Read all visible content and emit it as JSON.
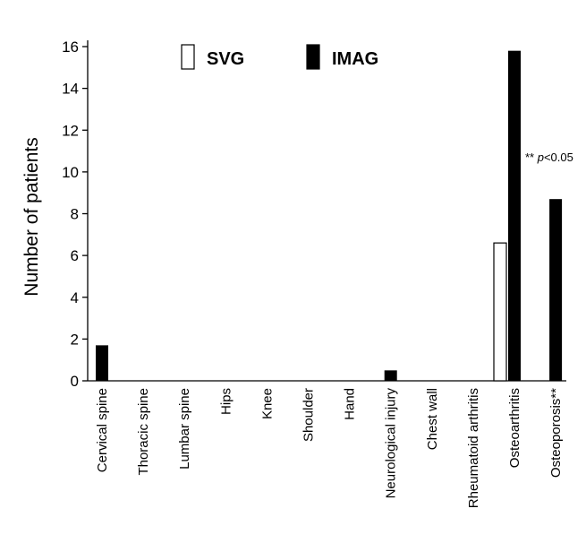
{
  "chart_data": {
    "type": "bar",
    "ylabel": "Number of patients",
    "xlabel": "",
    "ylim": [
      0,
      16
    ],
    "yticks": [
      0,
      2,
      4,
      6,
      8,
      10,
      12,
      14,
      16
    ],
    "categories": [
      "Cervical spine",
      "Thoracic spine",
      "Lumbar spine",
      "Hips",
      "Knee",
      "Shoulder",
      "Hand",
      "Neurological injury",
      "Chest wall",
      "Rheumatoid arthritis",
      "Osteoarthritis",
      "Osteoporosis**"
    ],
    "series": [
      {
        "name": "SVG",
        "color": "#ffffff",
        "values": [
          0,
          0,
          0,
          0,
          0,
          0,
          0,
          0,
          0,
          0,
          6.6,
          0
        ]
      },
      {
        "name": "IMAG",
        "color": "#000000",
        "values": [
          1.7,
          0,
          0,
          0,
          0,
          0,
          0,
          0.5,
          0,
          0,
          15.8,
          8.7
        ]
      }
    ],
    "annotation": {
      "prefix": "** ",
      "italic": "p",
      "suffix": "<0.05"
    },
    "legend_position": "top-center",
    "grid": false
  }
}
